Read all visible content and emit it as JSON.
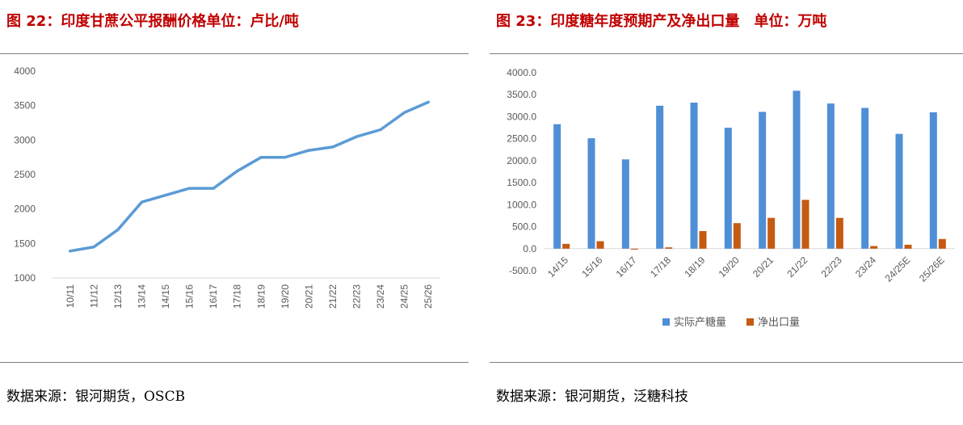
{
  "left_panel": {
    "title": "图 22：印度甘蔗公平报酬价格单位：卢比/吨",
    "source": "数据来源：银河期货，OSCB"
  },
  "right_panel": {
    "title": "图 23：印度糖年度预期产及净出口量　单位：万吨",
    "source": "数据来源：银河期货，泛糖科技"
  },
  "colors": {
    "title_red": "#c00000",
    "line_blue": "#5b9bd5",
    "bar_blue": "#4f8fd6",
    "bar_orange": "#c55a11"
  },
  "chart_data": [
    {
      "type": "line",
      "categories": [
        "10/11",
        "11/12",
        "12/13",
        "13/14",
        "14/15",
        "15/16",
        "16/17",
        "17/18",
        "18/19",
        "19/20",
        "20/21",
        "21/22",
        "22/23",
        "23/24",
        "24/25",
        "25/26"
      ],
      "series": [
        {
          "values": [
            1390,
            1450,
            1700,
            2100,
            2200,
            2300,
            2300,
            2550,
            2750,
            2750,
            2850,
            2900,
            3050,
            3150,
            3400,
            3550
          ]
        }
      ],
      "ylim": [
        1000,
        4000
      ],
      "yticks": [
        "1000",
        "1500",
        "2000",
        "2500",
        "3000",
        "3500",
        "4000"
      ],
      "grid": false,
      "legend": "none"
    },
    {
      "type": "bar",
      "categories": [
        "14/15",
        "15/16",
        "16/17",
        "17/18",
        "18/19",
        "19/20",
        "20/21",
        "21/22",
        "22/23",
        "23/24",
        "24/25E",
        "25/26E"
      ],
      "series": [
        {
          "name": "实际产糖量",
          "values": [
            2830,
            2510,
            2030,
            3250,
            3320,
            2750,
            3110,
            3590,
            3300,
            3200,
            2610,
            3100
          ]
        },
        {
          "name": "净出口量",
          "values": [
            110,
            170,
            -20,
            30,
            400,
            580,
            700,
            1110,
            700,
            60,
            90,
            220
          ]
        }
      ],
      "ylim": [
        -500,
        4000
      ],
      "yticks": [
        "-500.0",
        "0.0",
        "500.0",
        "1000.0",
        "1500.0",
        "2000.0",
        "2500.0",
        "3000.0",
        "3500.0",
        "4000.0"
      ],
      "grid": false,
      "legend": "bottom"
    }
  ]
}
